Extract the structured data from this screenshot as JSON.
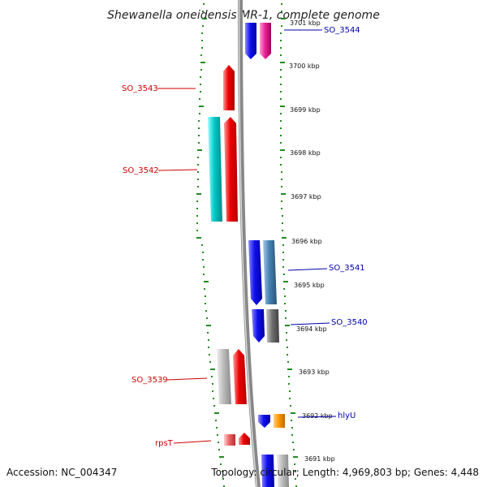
{
  "title": "Shewanella oneidensis MR-1, complete genome",
  "accession": "Accession: NC_004347",
  "topology": "Topology: circular; Length: 4,969,803 bp; Genes: 4,448",
  "kbp_labels": [
    "3701 kbp",
    "3700 kbp",
    "3699 kbp",
    "3698 kbp",
    "3697 kbp",
    "3696 kbp",
    "3695 kbp",
    "3694 kbp",
    "3693 kbp",
    "3692 kbp",
    "3691 kbp"
  ],
  "genes_left": [
    {
      "name": "SO_3543",
      "color": "#ee0000"
    },
    {
      "name": "SO_3542",
      "color": "#ee0000"
    },
    {
      "name": "SO_3539",
      "color": "#ee0000"
    },
    {
      "name": "rpsT",
      "color": "#ee6666"
    }
  ],
  "genes_right": [
    {
      "name": "SO_3544",
      "color": "#0000ee"
    },
    {
      "name": "SO_3541",
      "color": "#0000ee"
    },
    {
      "name": "SO_3540",
      "color": "#0000ee"
    },
    {
      "name": "hlyU",
      "color": "#0000ee"
    }
  ],
  "colors": {
    "red": "#ee0000",
    "blue": "#1010ee",
    "cyan": "#00c8c8",
    "magenta": "#ee2299",
    "steelblue": "#4682b4",
    "gray": "#707070",
    "lightgray": "#bcbcbc",
    "orange": "#ff9900",
    "tick": "#228b22"
  }
}
